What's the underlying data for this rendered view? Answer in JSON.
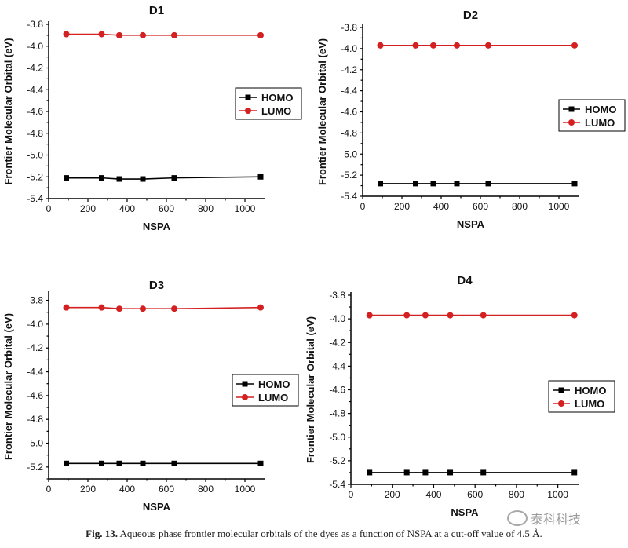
{
  "chart_data": [
    {
      "type": "line",
      "title": "D1",
      "xlabel": "NSPA",
      "ylabel": "Frontier Molecular Orbital (eV)",
      "xlim": [
        0,
        1100
      ],
      "ylim": [
        -5.4,
        -3.8
      ],
      "x_ticks": [
        "0",
        "200",
        "400",
        "600",
        "800",
        "1000"
      ],
      "y_ticks": [
        "-3.8",
        "-4.0",
        "-4.2",
        "-4.4",
        "-4.6",
        "-4.8",
        "-5.0",
        "-5.2",
        "-5.4"
      ],
      "legend_position": "right-middle",
      "grid": false,
      "x": [
        90,
        270,
        360,
        480,
        640,
        1080
      ],
      "series": [
        {
          "name": "HOMO",
          "marker": "square",
          "color": "#000000",
          "values": [
            -5.21,
            -5.21,
            -5.22,
            -5.22,
            -5.21,
            -5.2
          ]
        },
        {
          "name": "LUMO",
          "marker": "circle",
          "color": "#d42020",
          "values": [
            -3.89,
            -3.89,
            -3.9,
            -3.9,
            -3.9,
            -3.9
          ]
        }
      ]
    },
    {
      "type": "line",
      "title": "D2",
      "xlabel": "NSPA",
      "ylabel": "Frontier Molecular Orbital (eV)",
      "xlim": [
        0,
        1100
      ],
      "ylim": [
        -5.4,
        -3.8
      ],
      "x_ticks": [
        "0",
        "200",
        "400",
        "600",
        "800",
        "1000"
      ],
      "y_ticks": [
        "-3.8",
        "-4.0",
        "-4.2",
        "-4.4",
        "-4.6",
        "-4.8",
        "-5.0",
        "-5.2",
        "-5.4"
      ],
      "legend_position": "right-middle",
      "grid": false,
      "x": [
        90,
        270,
        360,
        480,
        640,
        1080
      ],
      "series": [
        {
          "name": "HOMO",
          "marker": "square",
          "color": "#000000",
          "values": [
            -5.28,
            -5.28,
            -5.28,
            -5.28,
            -5.28,
            -5.28
          ]
        },
        {
          "name": "LUMO",
          "marker": "circle",
          "color": "#d42020",
          "values": [
            -3.97,
            -3.97,
            -3.97,
            -3.97,
            -3.97,
            -3.97
          ]
        }
      ]
    },
    {
      "type": "line",
      "title": "D3",
      "xlabel": "NSPA",
      "ylabel": "Frontier Molecular Orbital (eV)",
      "xlim": [
        0,
        1100
      ],
      "ylim": [
        -5.3,
        -3.75
      ],
      "x_ticks": [
        "0",
        "200",
        "400",
        "600",
        "800",
        "1000"
      ],
      "y_ticks": [
        "-3.8",
        "-4.0",
        "-4.2",
        "-4.4",
        "-4.6",
        "-4.8",
        "-5.0",
        "-5.2"
      ],
      "legend_position": "right-middle",
      "grid": false,
      "x": [
        90,
        270,
        360,
        480,
        640,
        1080
      ],
      "series": [
        {
          "name": "HOMO",
          "marker": "square",
          "color": "#000000",
          "values": [
            -5.17,
            -5.17,
            -5.17,
            -5.17,
            -5.17,
            -5.17
          ]
        },
        {
          "name": "LUMO",
          "marker": "circle",
          "color": "#d42020",
          "values": [
            -3.86,
            -3.86,
            -3.87,
            -3.87,
            -3.87,
            -3.86
          ]
        }
      ]
    },
    {
      "type": "line",
      "title": "D4",
      "xlabel": "NSPA",
      "ylabel": "Frontier Molecular Orbital (eV)",
      "xlim": [
        0,
        1100
      ],
      "ylim": [
        -5.4,
        -3.8
      ],
      "x_ticks": [
        "0",
        "200",
        "400",
        "600",
        "800",
        "1000"
      ],
      "y_ticks": [
        "-3.8",
        "-4.0",
        "-4.2",
        "-4.4",
        "-4.6",
        "-4.8",
        "-5.0",
        "-5.2",
        "-5.4"
      ],
      "legend_position": "right-lower",
      "grid": false,
      "x": [
        90,
        270,
        360,
        480,
        640,
        1080
      ],
      "series": [
        {
          "name": "HOMO",
          "marker": "square",
          "color": "#000000",
          "values": [
            -5.3,
            -5.3,
            -5.3,
            -5.3,
            -5.3,
            -5.3
          ]
        },
        {
          "name": "LUMO",
          "marker": "circle",
          "color": "#d42020",
          "values": [
            -3.97,
            -3.97,
            -3.97,
            -3.97,
            -3.97,
            -3.97
          ]
        }
      ]
    }
  ],
  "caption": {
    "label": "Fig. 13.",
    "text": " Aqueous phase frontier molecular orbitals of the dyes as a function of NSPA at a cut-off value of 4.5 Å."
  },
  "watermark": {
    "text": "泰科科技",
    "icon": "wechat-icon"
  }
}
